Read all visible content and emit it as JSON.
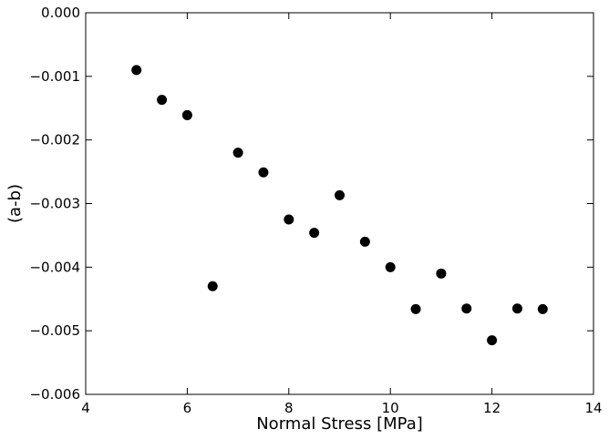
{
  "chart_data": {
    "type": "scatter",
    "title": "",
    "xlabel": "Normal Stress [MPa]",
    "ylabel": "(a-b)",
    "xlim": [
      4,
      14
    ],
    "ylim": [
      -0.006,
      0.0
    ],
    "xticks": [
      4,
      6,
      8,
      10,
      12,
      14
    ],
    "xtick_labels": [
      "4",
      "6",
      "8",
      "10",
      "12",
      "14"
    ],
    "yticks": [
      0.0,
      -0.001,
      -0.002,
      -0.003,
      -0.004,
      -0.005,
      -0.006
    ],
    "ytick_labels": [
      "0.000",
      "−0.001",
      "−0.002",
      "−0.003",
      "−0.004",
      "−0.005",
      "−0.006"
    ],
    "grid": false,
    "marker_color": "#000000",
    "series": [
      {
        "x": [
          5.0,
          5.5,
          6.0,
          6.5,
          7.0,
          7.5,
          8.0,
          8.5,
          9.0,
          9.5,
          10.0,
          10.5,
          11.0,
          11.5,
          12.0,
          12.5,
          13.0
        ],
        "y": [
          -0.0009,
          -0.00137,
          -0.00161,
          -0.0043,
          -0.0022,
          -0.00251,
          -0.00325,
          -0.00346,
          -0.00287,
          -0.0036,
          -0.004,
          -0.00466,
          -0.0041,
          -0.00465,
          -0.00515,
          -0.00465,
          -0.00466
        ]
      }
    ]
  }
}
